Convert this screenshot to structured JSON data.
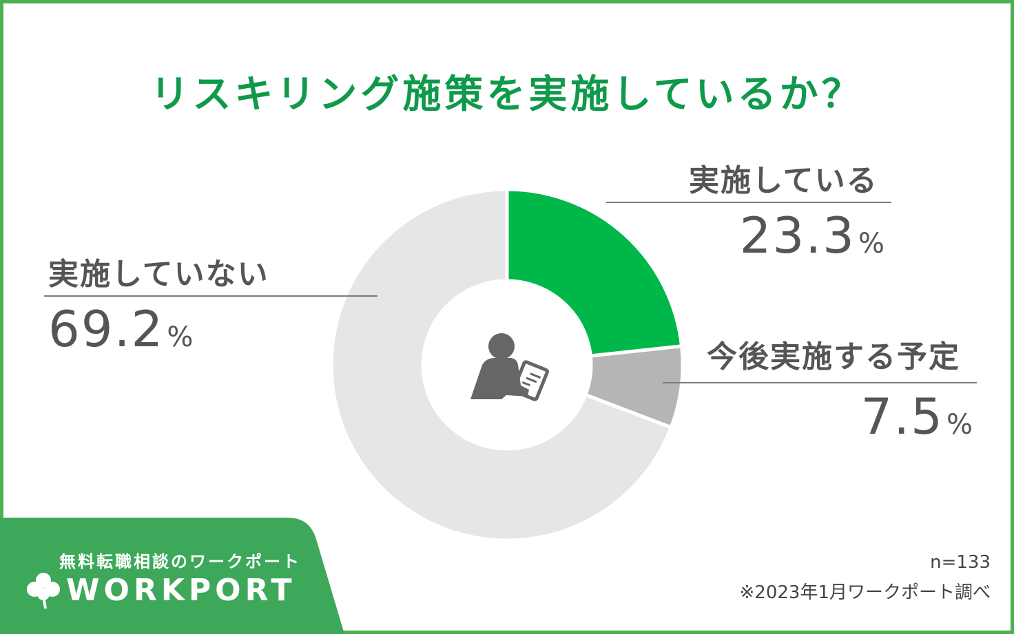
{
  "chart_data": {
    "type": "pie",
    "variant": "donut",
    "title": "リスキリング施策を実施しているか？",
    "slices": [
      {
        "label": "実施している",
        "value": 23.3,
        "unit": "%",
        "color": "#00b84a"
      },
      {
        "label": "今後実施する予定",
        "value": 7.5,
        "unit": "%",
        "color": "#b5b5b5"
      },
      {
        "label": "実施していない",
        "value": 69.2,
        "unit": "%",
        "color": "#e6e6e6"
      }
    ],
    "sample_size": "n=133",
    "source_note": "※2023年1月ワークポート調べ",
    "center_icon": "person-writing-clipboard-icon"
  },
  "brand": {
    "tagline": "無料転職相談のワークポート",
    "logo_text": "WORKPORT",
    "logo_icon": "clover-icon",
    "color": "#3da85a"
  },
  "colors": {
    "title": "#0e9a4a",
    "frame": "#4caf50",
    "text": "#555555"
  }
}
